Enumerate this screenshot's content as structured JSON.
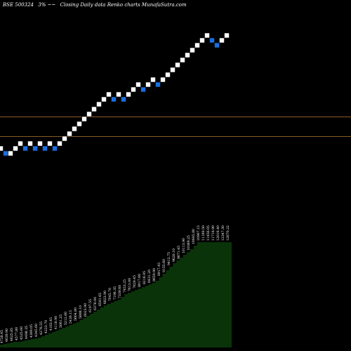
{
  "header": {
    "title": "BSE 500324",
    "change": "3%",
    "arrows": "~~",
    "subtitle": "Closing Daily data  Renko  charts MunafaSutra.com"
  },
  "colors": {
    "background": "#000000",
    "brick_up": "#ffffff",
    "brick_down": "#1a6fe0",
    "reference_line": "#8a5a2a",
    "volume_fill": "#0a3309"
  },
  "chart_data": {
    "type": "renko",
    "title": "",
    "xlabel": "",
    "ylabel": "",
    "y_axis_visible": false,
    "grid": false,
    "legend": "none",
    "brick_size": 1,
    "reference_lines": [
      50.5,
      46.5
    ],
    "bricks": [
      {
        "level": 44,
        "dir": "up"
      },
      {
        "level": 43,
        "dir": "down"
      },
      {
        "level": 43,
        "dir": "up"
      },
      {
        "level": 44,
        "dir": "up"
      },
      {
        "level": 45,
        "dir": "up"
      },
      {
        "level": 44,
        "dir": "down"
      },
      {
        "level": 45,
        "dir": "up"
      },
      {
        "level": 44,
        "dir": "down"
      },
      {
        "level": 45,
        "dir": "up"
      },
      {
        "level": 44,
        "dir": "down"
      },
      {
        "level": 45,
        "dir": "up"
      },
      {
        "level": 44,
        "dir": "down"
      },
      {
        "level": 45,
        "dir": "up"
      },
      {
        "level": 46,
        "dir": "up"
      },
      {
        "level": 47,
        "dir": "up"
      },
      {
        "level": 48,
        "dir": "up"
      },
      {
        "level": 49,
        "dir": "up"
      },
      {
        "level": 50,
        "dir": "up"
      },
      {
        "level": 51,
        "dir": "up"
      },
      {
        "level": 52,
        "dir": "up"
      },
      {
        "level": 53,
        "dir": "up"
      },
      {
        "level": 54,
        "dir": "up"
      },
      {
        "level": 55,
        "dir": "up"
      },
      {
        "level": 54,
        "dir": "down"
      },
      {
        "level": 55,
        "dir": "up"
      },
      {
        "level": 54,
        "dir": "down"
      },
      {
        "level": 55,
        "dir": "up"
      },
      {
        "level": 56,
        "dir": "up"
      },
      {
        "level": 57,
        "dir": "up"
      },
      {
        "level": 56,
        "dir": "down"
      },
      {
        "level": 57,
        "dir": "up"
      },
      {
        "level": 58,
        "dir": "up"
      },
      {
        "level": 57,
        "dir": "down"
      },
      {
        "level": 58,
        "dir": "up"
      },
      {
        "level": 59,
        "dir": "up"
      },
      {
        "level": 60,
        "dir": "up"
      },
      {
        "level": 61,
        "dir": "up"
      },
      {
        "level": 62,
        "dir": "up"
      },
      {
        "level": 63,
        "dir": "up"
      },
      {
        "level": 64,
        "dir": "up"
      },
      {
        "level": 65,
        "dir": "up"
      },
      {
        "level": 66,
        "dir": "up"
      },
      {
        "level": 67,
        "dir": "up"
      },
      {
        "level": 66,
        "dir": "down"
      },
      {
        "level": 65,
        "dir": "down"
      },
      {
        "level": 66,
        "dir": "up"
      },
      {
        "level": 67,
        "dir": "up"
      }
    ],
    "volume_profile": [
      4,
      5,
      6,
      7,
      8,
      8,
      9,
      10,
      11,
      12,
      13,
      14,
      16,
      18,
      20,
      22,
      24,
      26,
      28,
      30,
      32,
      34,
      36,
      39,
      42,
      45,
      48,
      51,
      54,
      57,
      60,
      62,
      64,
      66,
      68,
      72,
      76,
      78,
      80,
      82,
      84,
      86,
      88,
      90,
      92,
      95,
      100,
      105,
      110,
      115,
      120,
      124,
      128,
      132,
      136,
      140,
      145,
      150,
      150,
      150,
      150,
      150,
      150,
      150,
      150,
      150,
      150
    ],
    "volume_labels": [
      "4728.45",
      "4639.90",
      "4625.85",
      "4577.80",
      "4525.60",
      "4498.35",
      "4389.05",
      "4345.60",
      "4276.55",
      "4223.70",
      "4163.45",
      "4118.90",
      "5061.25",
      "5212.80",
      "5439.15",
      "5604.80",
      "5888.10",
      "6023.90",
      "6197.55",
      "6376.00",
      "6591.65",
      "6823.90",
      "7045.70",
      "7198.35",
      "7339.60",
      "7453.25",
      "7613.00",
      "7829.45",
      "8017.60",
      "8216.95",
      "8431.20",
      "8659.90",
      "8917.45",
      "9155.60",
      "9412.75",
      "9620.10",
      "9871.45",
      "10113.90",
      "10389.25",
      "10645.80",
      "10907.15",
      "11189.50",
      "11456.05",
      "11718.90",
      "12016.40",
      "12347.30",
      "12670.22"
    ]
  }
}
